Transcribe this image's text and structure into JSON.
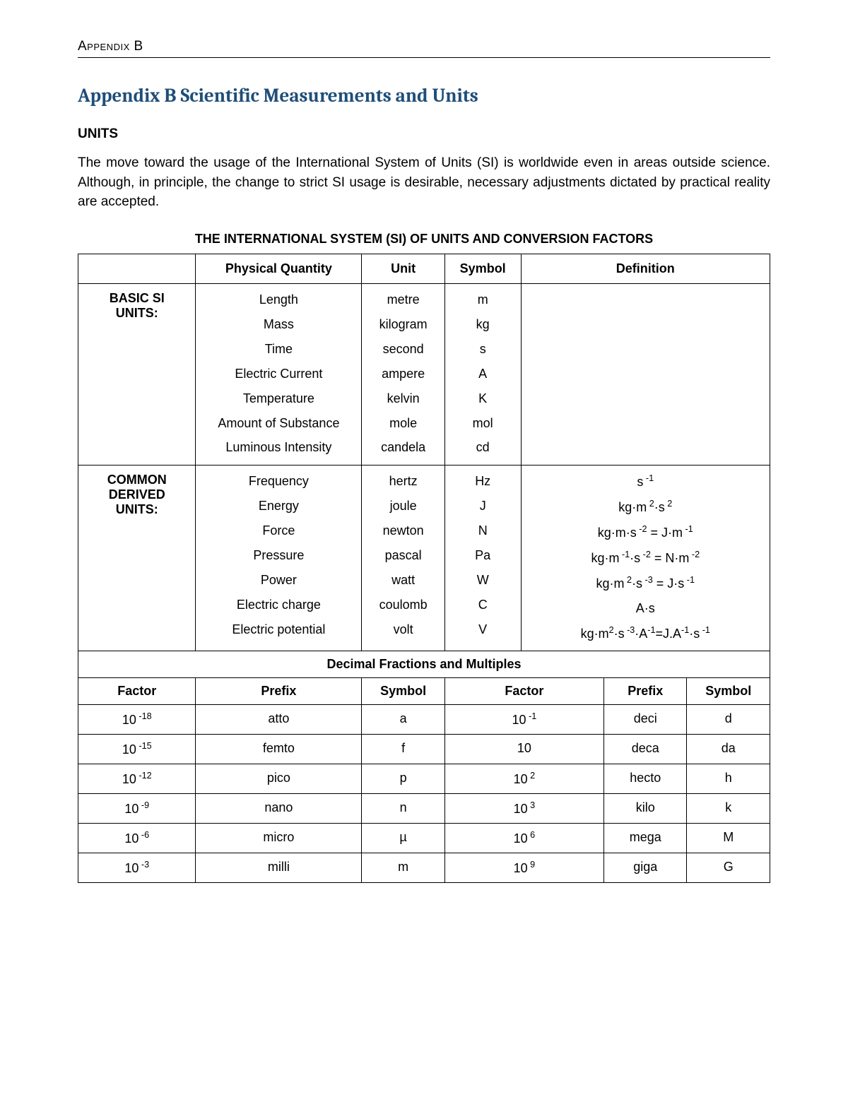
{
  "header": {
    "label": "Appendix B"
  },
  "title": "Appendix B Scientific Measurements and Units",
  "section_heading": "UNITS",
  "body_text": "The move toward the usage of the International System of Units (SI) is worldwide even in areas outside science.  Although, in principle, the change to strict SI usage is desirable, necessary adjustments dictated by practical reality are accepted.",
  "table_title": "THE INTERNATIONAL SYSTEM (SI) OF UNITS AND CONVERSION FACTORS",
  "columns": {
    "qty": "Physical Quantity",
    "unit": "Unit",
    "symbol": "Symbol",
    "def": "Definition"
  },
  "basic": {
    "label": "BASIC SI UNITS:",
    "rows": [
      {
        "qty": "Length",
        "unit": "metre",
        "symbol": "m",
        "def": ""
      },
      {
        "qty": "Mass",
        "unit": "kilogram",
        "symbol": "kg",
        "def": ""
      },
      {
        "qty": "Time",
        "unit": "second",
        "symbol": "s",
        "def": ""
      },
      {
        "qty": "Electric Current",
        "unit": "ampere",
        "symbol": "A",
        "def": ""
      },
      {
        "qty": "Temperature",
        "unit": "kelvin",
        "symbol": "K",
        "def": ""
      },
      {
        "qty": "Amount of Substance",
        "unit": "mole",
        "symbol": "mol",
        "def": ""
      },
      {
        "qty": "Luminous Intensity",
        "unit": "candela",
        "symbol": "cd",
        "def": ""
      }
    ]
  },
  "derived": {
    "label": "COMMON DERIVED UNITS:",
    "rows": [
      {
        "qty": "Frequency",
        "unit": "hertz",
        "symbol": "Hz",
        "def": "s<sup>&nbsp;-1</sup>"
      },
      {
        "qty": "Energy",
        "unit": "joule",
        "symbol": "J",
        "def": "kg·m<sup>&nbsp;2</sup>·s<sup>&nbsp;2</sup>"
      },
      {
        "qty": "Force",
        "unit": "newton",
        "symbol": "N",
        "def": "kg·m·s<sup>&nbsp;-2</sup> = J·m<sup>&nbsp;-1</sup>"
      },
      {
        "qty": "Pressure",
        "unit": "pascal",
        "symbol": "Pa",
        "def": "kg·m<sup>&nbsp;-1</sup>·s<sup>&nbsp;-2</sup> = N·m<sup>&nbsp;-2</sup>"
      },
      {
        "qty": "Power",
        "unit": "watt",
        "symbol": "W",
        "def": "kg·m<sup>&nbsp;2</sup>·s<sup>&nbsp;-3</sup> = J·s<sup>&nbsp;-1</sup>"
      },
      {
        "qty": "Electric charge",
        "unit": "coulomb",
        "symbol": "C",
        "def": "A·s"
      },
      {
        "qty": "Electric potential",
        "unit": "volt",
        "symbol": "V",
        "def": "kg·m<sup>2</sup>·s<sup>&nbsp;-3</sup>·A<sup>-1</sup>=J.A<sup>-1</sup>·s<sup>&nbsp;-1</sup>"
      }
    ]
  },
  "fractions": {
    "title": "Decimal Fractions and Multiples",
    "headers": {
      "factor": "Factor",
      "prefix": "Prefix",
      "symbol": "Symbol"
    },
    "rows": [
      {
        "f1": "10<sup>&nbsp;-18</sup>",
        "p1": "atto",
        "s1": "a",
        "f2": "10<sup>&nbsp;-1</sup>",
        "p2": "deci",
        "s2": "d"
      },
      {
        "f1": "10<sup>&nbsp;-15</sup>",
        "p1": "femto",
        "s1": "f",
        "f2": "10",
        "p2": "deca",
        "s2": "da"
      },
      {
        "f1": "10<sup>&nbsp;-12</sup>",
        "p1": "pico",
        "s1": "p",
        "f2": "10<sup>&nbsp;2</sup>",
        "p2": "hecto",
        "s2": "h"
      },
      {
        "f1": "10<sup>&nbsp;-9</sup>",
        "p1": "nano",
        "s1": "n",
        "f2": "10<sup>&nbsp;3</sup>",
        "p2": "kilo",
        "s2": "k"
      },
      {
        "f1": "10<sup>&nbsp;-6</sup>",
        "p1": "micro",
        "s1": "µ",
        "f2": "10<sup>&nbsp;6</sup>",
        "p2": "mega",
        "s2": "M"
      },
      {
        "f1": "10<sup>&nbsp;-3</sup>",
        "p1": "milli",
        "s1": "m",
        "f2": "10<sup>&nbsp;9</sup>",
        "p2": "giga",
        "s2": "G"
      }
    ]
  },
  "style": {
    "title_color": "#1f4e79",
    "text_color": "#000000",
    "background": "#ffffff",
    "border_color": "#000000",
    "body_font_size": 19,
    "title_font_size": 27
  }
}
